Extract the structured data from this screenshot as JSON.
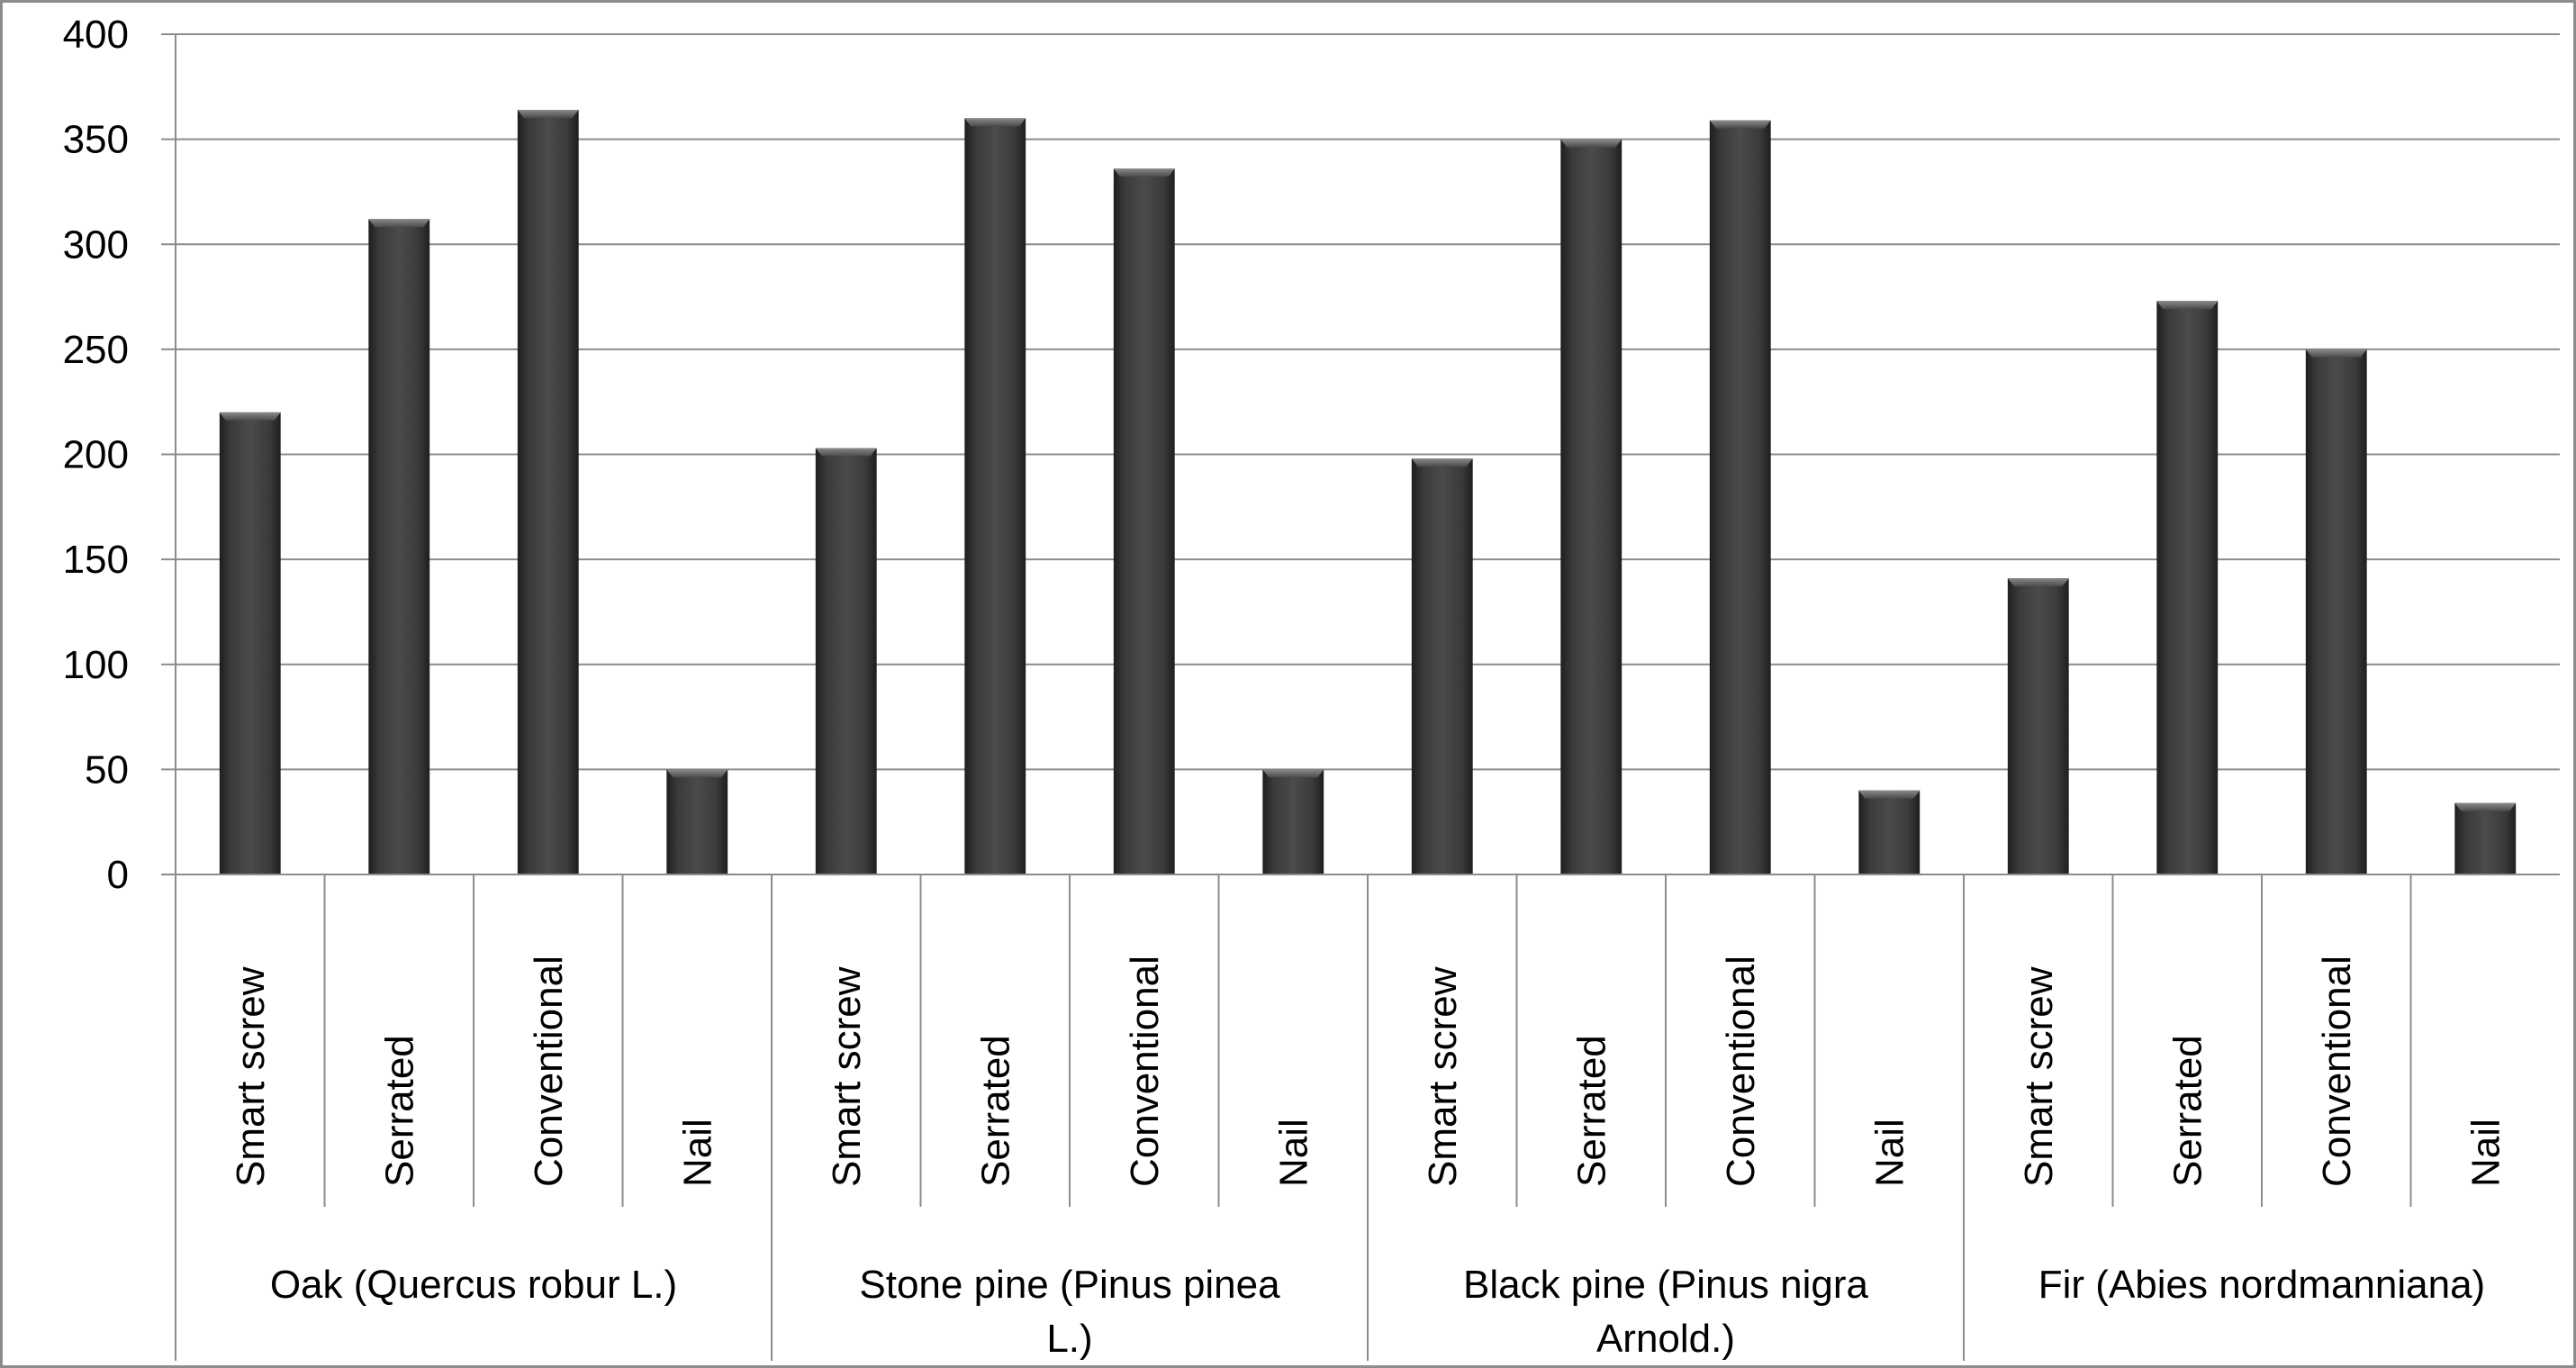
{
  "chart_data": {
    "type": "bar",
    "title": "",
    "xlabel": "",
    "ylabel": "",
    "ylim": [
      0,
      400
    ],
    "yticks": [
      0,
      50,
      100,
      150,
      200,
      250,
      300,
      350,
      400
    ],
    "grid": true,
    "legend": "none",
    "bar_color": "#3c3c3c",
    "groups": [
      {
        "label_lines": [
          "Oak (Quercus robur L.)"
        ]
      },
      {
        "label_lines": [
          "Stone pine (Pinus pinea",
          "L.)"
        ]
      },
      {
        "label_lines": [
          "Black pine (Pinus nigra",
          "Arnold.)"
        ]
      },
      {
        "label_lines": [
          "Fir (Abies nordmanniana)"
        ]
      }
    ],
    "categories": [
      "Smart screw",
      "Serrated",
      "Conventional",
      "Nail"
    ],
    "series": [
      {
        "group": "Oak (Quercus robur L.)",
        "values": [
          220,
          312,
          364,
          50
        ]
      },
      {
        "group": "Stone pine (Pinus pinea L.)",
        "values": [
          203,
          360,
          336,
          50
        ]
      },
      {
        "group": "Black pine (Pinus nigra Arnold.)",
        "values": [
          198,
          350,
          359,
          40
        ]
      },
      {
        "group": "Fir (Abies nordmanniana)",
        "values": [
          141,
          273,
          250,
          34
        ]
      }
    ]
  }
}
